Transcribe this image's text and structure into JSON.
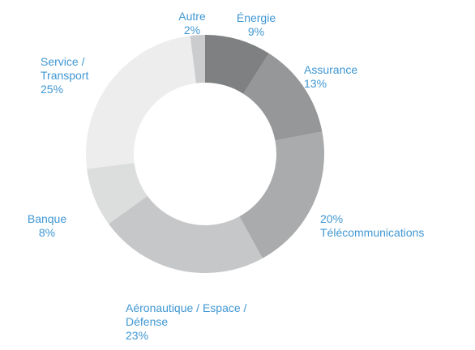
{
  "chart_data": {
    "type": "donut",
    "categories": [
      "Énergie",
      "Assurance",
      "Télécommunications",
      "Aéronautique / Espace / Défense",
      "Banque",
      "Service / Transport",
      "Autre"
    ],
    "values": [
      9,
      13,
      20,
      23,
      8,
      25,
      2
    ],
    "value_labels": [
      "9%",
      "13%",
      "20%",
      "23%",
      "8%",
      "25%",
      "2%"
    ],
    "colors": [
      "#7e8081",
      "#969798",
      "#aaabac",
      "#c6c7c8",
      "#dcdddd",
      "#ededed",
      "#cbcccd"
    ]
  }
}
